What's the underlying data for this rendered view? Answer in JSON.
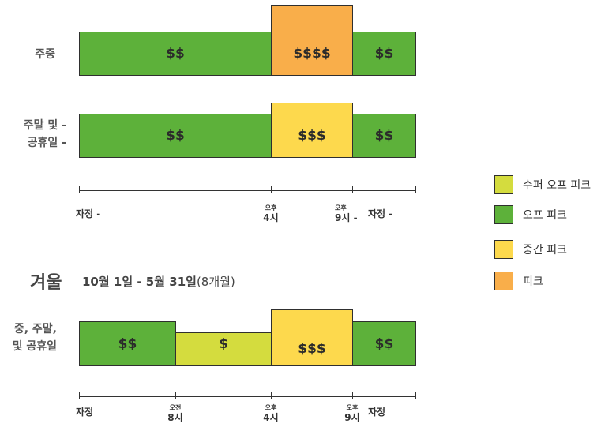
{
  "colors": {
    "super_off_peak": "#d4dc3e",
    "off_peak": "#5db13a",
    "mid_peak": "#fdd94d",
    "peak": "#f9ae4a",
    "outline": "#2f2f2f"
  },
  "summer": {
    "weekday": {
      "label_lines": [
        "주중"
      ],
      "segments": [
        {
          "text": "$$",
          "color": "off_peak"
        },
        {
          "text": "$$$$",
          "color": "peak"
        },
        {
          "text": "$$",
          "color": "off_peak"
        }
      ]
    },
    "weekend": {
      "label_lines": [
        "주말 및 -",
        "공휴일 -"
      ],
      "segments": [
        {
          "text": "$$",
          "color": "off_peak"
        },
        {
          "text": "$$$",
          "color": "mid_peak"
        },
        {
          "text": "$$",
          "color": "off_peak"
        }
      ]
    },
    "axis": {
      "start": "자정 -",
      "t1_small": "오후",
      "t1": "4시",
      "t2_small": "오후",
      "t2": "9시 -",
      "end": "자정 -"
    }
  },
  "winter": {
    "title": "겨울",
    "range_bold": "10월 1일 - 5월 31일",
    "range_rest": "(8개월)",
    "row": {
      "label_lines": [
        "중, 주말,",
        "및 공휴일"
      ],
      "segments": [
        {
          "text": "$$",
          "color": "off_peak"
        },
        {
          "text": "$",
          "color": "super_off_peak"
        },
        {
          "text": "$$$",
          "color": "mid_peak"
        },
        {
          "text": "$$",
          "color": "off_peak"
        }
      ]
    },
    "axis": {
      "start": "자정",
      "t1_small": "오전",
      "t1": "8시",
      "t2_small": "오후",
      "t2": "4시",
      "t3_small": "오후",
      "t3": "9시",
      "end": "자정"
    }
  },
  "legend": [
    {
      "label": "수퍼 오프 피크",
      "color": "super_off_peak"
    },
    {
      "label": "오프 피크",
      "color": "off_peak"
    },
    {
      "label": "중간 피크",
      "color": "mid_peak"
    },
    {
      "label": "피크",
      "color": "peak"
    }
  ]
}
